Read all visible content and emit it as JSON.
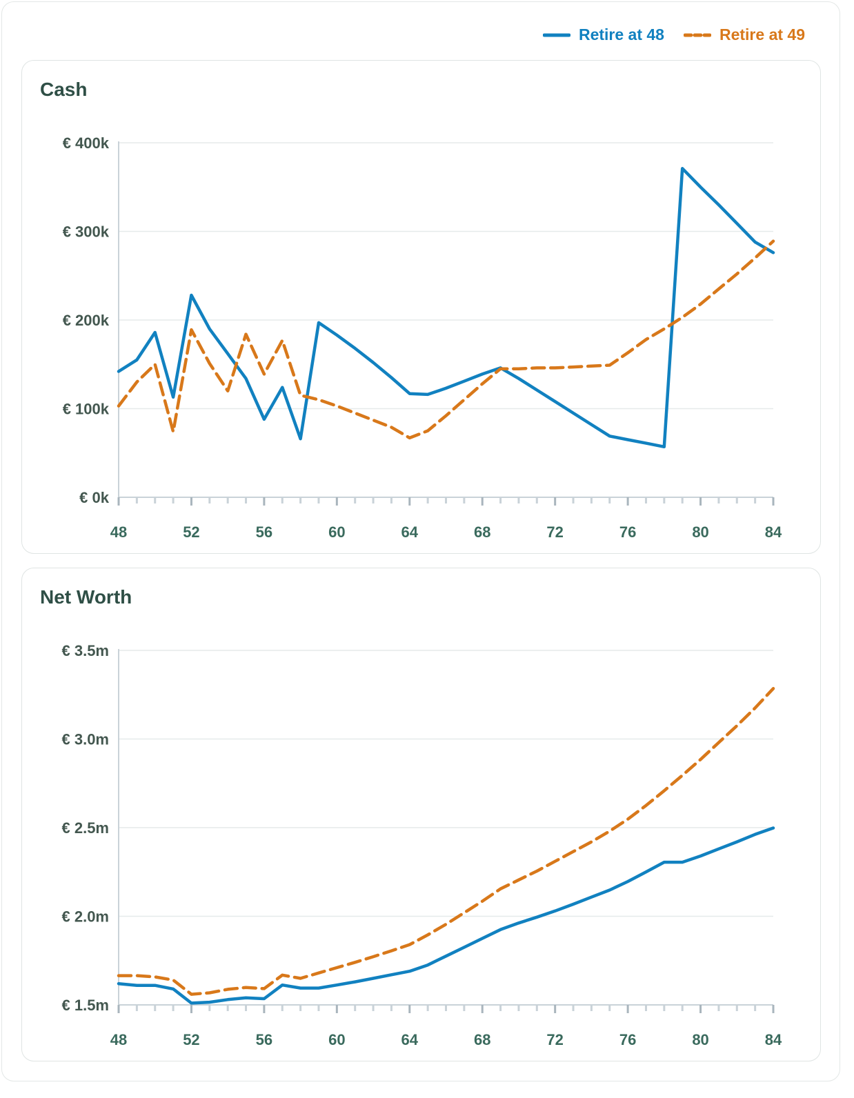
{
  "legend": {
    "items": [
      {
        "label": "Retire at 48",
        "color": "#1181c0",
        "style": "solid"
      },
      {
        "label": "Retire at 49",
        "color": "#d8781a",
        "style": "dashed"
      }
    ]
  },
  "chart_data": [
    {
      "type": "line",
      "title": "Cash",
      "xlabel": "",
      "ylabel": "",
      "x": [
        48,
        49,
        50,
        51,
        52,
        53,
        54,
        55,
        56,
        57,
        58,
        59,
        60,
        61,
        62,
        63,
        64,
        65,
        66,
        67,
        68,
        69,
        70,
        71,
        72,
        73,
        74,
        75,
        76,
        77,
        78,
        79,
        80,
        81,
        82,
        83,
        84
      ],
      "xlim": [
        48,
        84
      ],
      "ylim": [
        0,
        400000
      ],
      "x_ticks": [
        "48",
        "52",
        "56",
        "60",
        "64",
        "68",
        "72",
        "76",
        "80",
        "84"
      ],
      "x_tick_values": [
        48,
        52,
        56,
        60,
        64,
        68,
        72,
        76,
        80,
        84
      ],
      "y_ticks": [
        "€ 0k",
        "€ 100k",
        "€ 200k",
        "€ 300k",
        "€ 400k"
      ],
      "y_tick_values": [
        0,
        100000,
        200000,
        300000,
        400000
      ],
      "grid": true,
      "legend_position": "top-right",
      "series": [
        {
          "name": "Retire at 48",
          "values": [
            142000,
            155000,
            186000,
            113000,
            228000,
            190000,
            162000,
            134000,
            88000,
            124000,
            66000,
            197000,
            183000,
            168000,
            152000,
            135000,
            117000,
            116000,
            123000,
            131000,
            139000,
            146000,
            134000,
            121000,
            108000,
            95000,
            82000,
            69000,
            65000,
            61000,
            57000,
            371000,
            350000,
            330000,
            309000,
            288000,
            276000
          ]
        },
        {
          "name": "Retire at 49",
          "values": [
            103000,
            130000,
            150000,
            74000,
            189000,
            151000,
            120000,
            184000,
            139000,
            177000,
            115000,
            110000,
            103000,
            95000,
            87000,
            79000,
            67000,
            75000,
            92000,
            110000,
            128000,
            145000,
            145000,
            146000,
            146000,
            147000,
            148000,
            149000,
            163000,
            178000,
            190000,
            203000,
            218000,
            235000,
            252000,
            270000,
            289000
          ]
        }
      ]
    },
    {
      "type": "line",
      "title": "Net Worth",
      "xlabel": "",
      "ylabel": "",
      "x": [
        48,
        49,
        50,
        51,
        52,
        53,
        54,
        55,
        56,
        57,
        58,
        59,
        60,
        61,
        62,
        63,
        64,
        65,
        66,
        67,
        68,
        69,
        70,
        71,
        72,
        73,
        74,
        75,
        76,
        77,
        78,
        79,
        80,
        81,
        82,
        83,
        84
      ],
      "xlim": [
        48,
        84
      ],
      "ylim": [
        1500000,
        3500000
      ],
      "x_ticks": [
        "48",
        "52",
        "56",
        "60",
        "64",
        "68",
        "72",
        "76",
        "80",
        "84"
      ],
      "x_tick_values": [
        48,
        52,
        56,
        60,
        64,
        68,
        72,
        76,
        80,
        84
      ],
      "y_ticks": [
        "€ 1.5m",
        "€ 2.0m",
        "€ 2.5m",
        "€ 3.0m",
        "€ 3.5m"
      ],
      "y_tick_values": [
        1500000,
        2000000,
        2500000,
        3000000,
        3500000
      ],
      "grid": true,
      "legend_position": "top-right",
      "series": [
        {
          "name": "Retire at 48",
          "values": [
            1620000,
            1610000,
            1610000,
            1590000,
            1510000,
            1515000,
            1530000,
            1540000,
            1535000,
            1612000,
            1595000,
            1595000,
            1612000,
            1630000,
            1650000,
            1670000,
            1690000,
            1725000,
            1775000,
            1825000,
            1875000,
            1925000,
            1962000,
            1995000,
            2030000,
            2068000,
            2108000,
            2148000,
            2196000,
            2250000,
            2305000,
            2305000,
            2340000,
            2380000,
            2420000,
            2462000,
            2498000
          ]
        },
        {
          "name": "Retire at 49",
          "values": [
            1665000,
            1665000,
            1658000,
            1640000,
            1560000,
            1568000,
            1588000,
            1598000,
            1592000,
            1668000,
            1650000,
            1680000,
            1710000,
            1740000,
            1772000,
            1805000,
            1840000,
            1895000,
            1955000,
            2020000,
            2085000,
            2155000,
            2205000,
            2255000,
            2310000,
            2365000,
            2420000,
            2480000,
            2548000,
            2625000,
            2708000,
            2795000,
            2885000,
            2980000,
            3075000,
            3175000,
            3285000
          ]
        }
      ]
    }
  ]
}
